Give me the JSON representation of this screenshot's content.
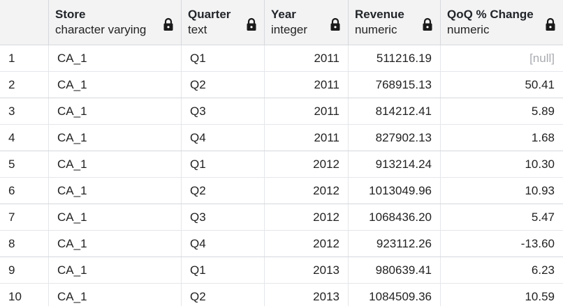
{
  "columns": [
    {
      "name": "Store",
      "type": "character varying",
      "lock_icon": "lock-icon"
    },
    {
      "name": "Quarter",
      "type": "text",
      "lock_icon": "lock-icon"
    },
    {
      "name": "Year",
      "type": "integer",
      "lock_icon": "lock-icon"
    },
    {
      "name": "Revenue",
      "type": "numeric",
      "lock_icon": "lock-icon"
    },
    {
      "name": "QoQ % Change",
      "type": "numeric",
      "lock_icon": "lock-icon"
    }
  ],
  "rows": [
    {
      "n": "1",
      "store": "CA_1",
      "quarter": "Q1",
      "year": "2011",
      "revenue": "511216.19",
      "qoq": "[null]"
    },
    {
      "n": "2",
      "store": "CA_1",
      "quarter": "Q2",
      "year": "2011",
      "revenue": "768915.13",
      "qoq": "50.41"
    },
    {
      "n": "3",
      "store": "CA_1",
      "quarter": "Q3",
      "year": "2011",
      "revenue": "814212.41",
      "qoq": "5.89"
    },
    {
      "n": "4",
      "store": "CA_1",
      "quarter": "Q4",
      "year": "2011",
      "revenue": "827902.13",
      "qoq": "1.68"
    },
    {
      "n": "5",
      "store": "CA_1",
      "quarter": "Q1",
      "year": "2012",
      "revenue": "913214.24",
      "qoq": "10.30"
    },
    {
      "n": "6",
      "store": "CA_1",
      "quarter": "Q2",
      "year": "2012",
      "revenue": "1013049.96",
      "qoq": "10.93"
    },
    {
      "n": "7",
      "store": "CA_1",
      "quarter": "Q3",
      "year": "2012",
      "revenue": "1068436.20",
      "qoq": "5.47"
    },
    {
      "n": "8",
      "store": "CA_1",
      "quarter": "Q4",
      "year": "2012",
      "revenue": "923112.26",
      "qoq": "-13.60"
    },
    {
      "n": "9",
      "store": "CA_1",
      "quarter": "Q1",
      "year": "2013",
      "revenue": "980639.41",
      "qoq": "6.23"
    },
    {
      "n": "10",
      "store": "CA_1",
      "quarter": "Q2",
      "year": "2013",
      "revenue": "1084509.36",
      "qoq": "10.59"
    }
  ],
  "colors": {
    "header_bg": "#f3f3f4",
    "null_text": "#a9abb0",
    "grid_line": "#e4e6ea"
  }
}
